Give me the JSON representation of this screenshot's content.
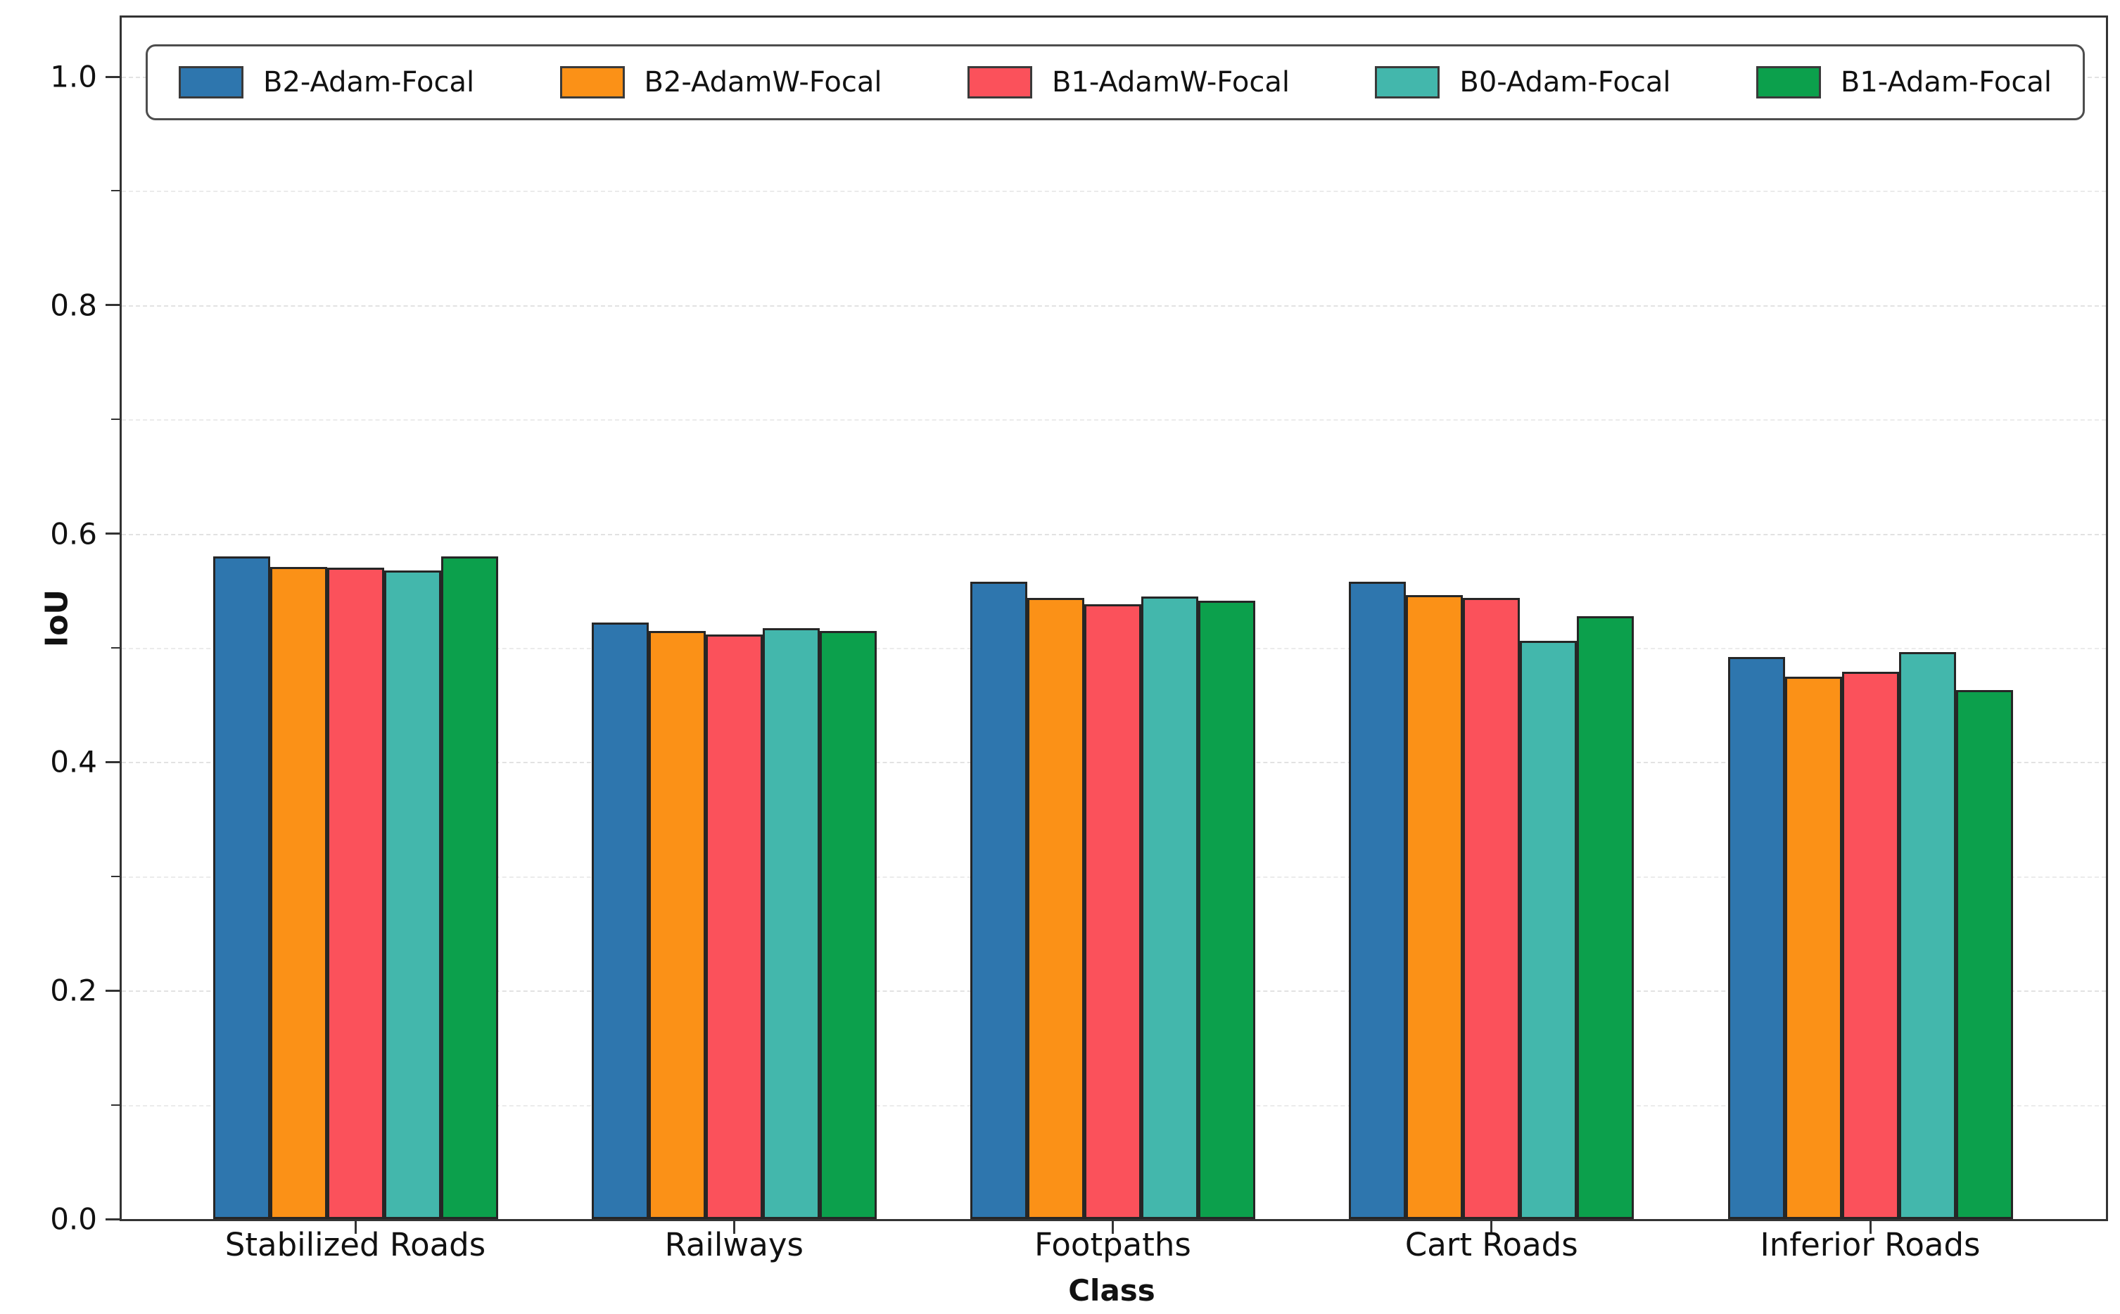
{
  "chart_data": {
    "type": "bar",
    "title": "",
    "xlabel": "Class",
    "ylabel": "IoU",
    "ylim": [
      0.0,
      1.05
    ],
    "yticks": [
      0.0,
      0.2,
      0.4,
      0.6,
      0.8,
      1.0
    ],
    "ytick_labels": [
      "0.0",
      "0.2",
      "0.4",
      "0.6",
      "0.8",
      "1.0"
    ],
    "minor_yticks": [
      0.1,
      0.3,
      0.5,
      0.7,
      0.9
    ],
    "grid": "horizontal dashed light-gray lines at 0.1 intervals",
    "legend_position": "top inside plot, single row",
    "categories": [
      "Stabilized Roads",
      "Railways",
      "Footpaths",
      "Cart Roads",
      "Inferior Roads"
    ],
    "series": [
      {
        "name": "B2-Adam-Focal",
        "color": "#2E76AE",
        "values": [
          0.58,
          0.522,
          0.558,
          0.558,
          0.492
        ]
      },
      {
        "name": "B2-AdamW-Focal",
        "color": "#FB9117",
        "values": [
          0.571,
          0.515,
          0.544,
          0.546,
          0.475
        ]
      },
      {
        "name": "B1-AdamW-Focal",
        "color": "#FB515B",
        "values": [
          0.57,
          0.512,
          0.538,
          0.544,
          0.479
        ]
      },
      {
        "name": "B0-Adam-Focal",
        "color": "#43B7AC",
        "values": [
          0.568,
          0.517,
          0.545,
          0.506,
          0.496
        ]
      },
      {
        "name": "B1-Adam-Focal",
        "color": "#0CA04C",
        "values": [
          0.58,
          0.515,
          0.541,
          0.528,
          0.463
        ]
      }
    ],
    "bar_edge_color": "#262626",
    "frame_color": "#333333"
  }
}
